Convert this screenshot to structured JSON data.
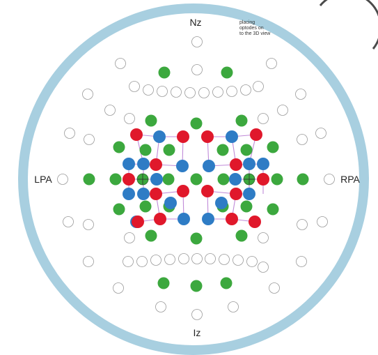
{
  "landmarks": {
    "nz": "Nz",
    "iz": "Iz",
    "lpa": "LPA",
    "rpa": "RPA"
  },
  "hint_text": "placing\noptodes on\nto the 3D view",
  "legend": [],
  "colors": {
    "ring": "#a8cfe0",
    "source": "#e0182b",
    "detector": "#2e7cc5",
    "short_channel": "#3ca83e",
    "channel_line": "#c08ad8",
    "empty_position": "#9a9a9a"
  },
  "sources_count_visible": 16,
  "detectors_count_visible": 16
}
